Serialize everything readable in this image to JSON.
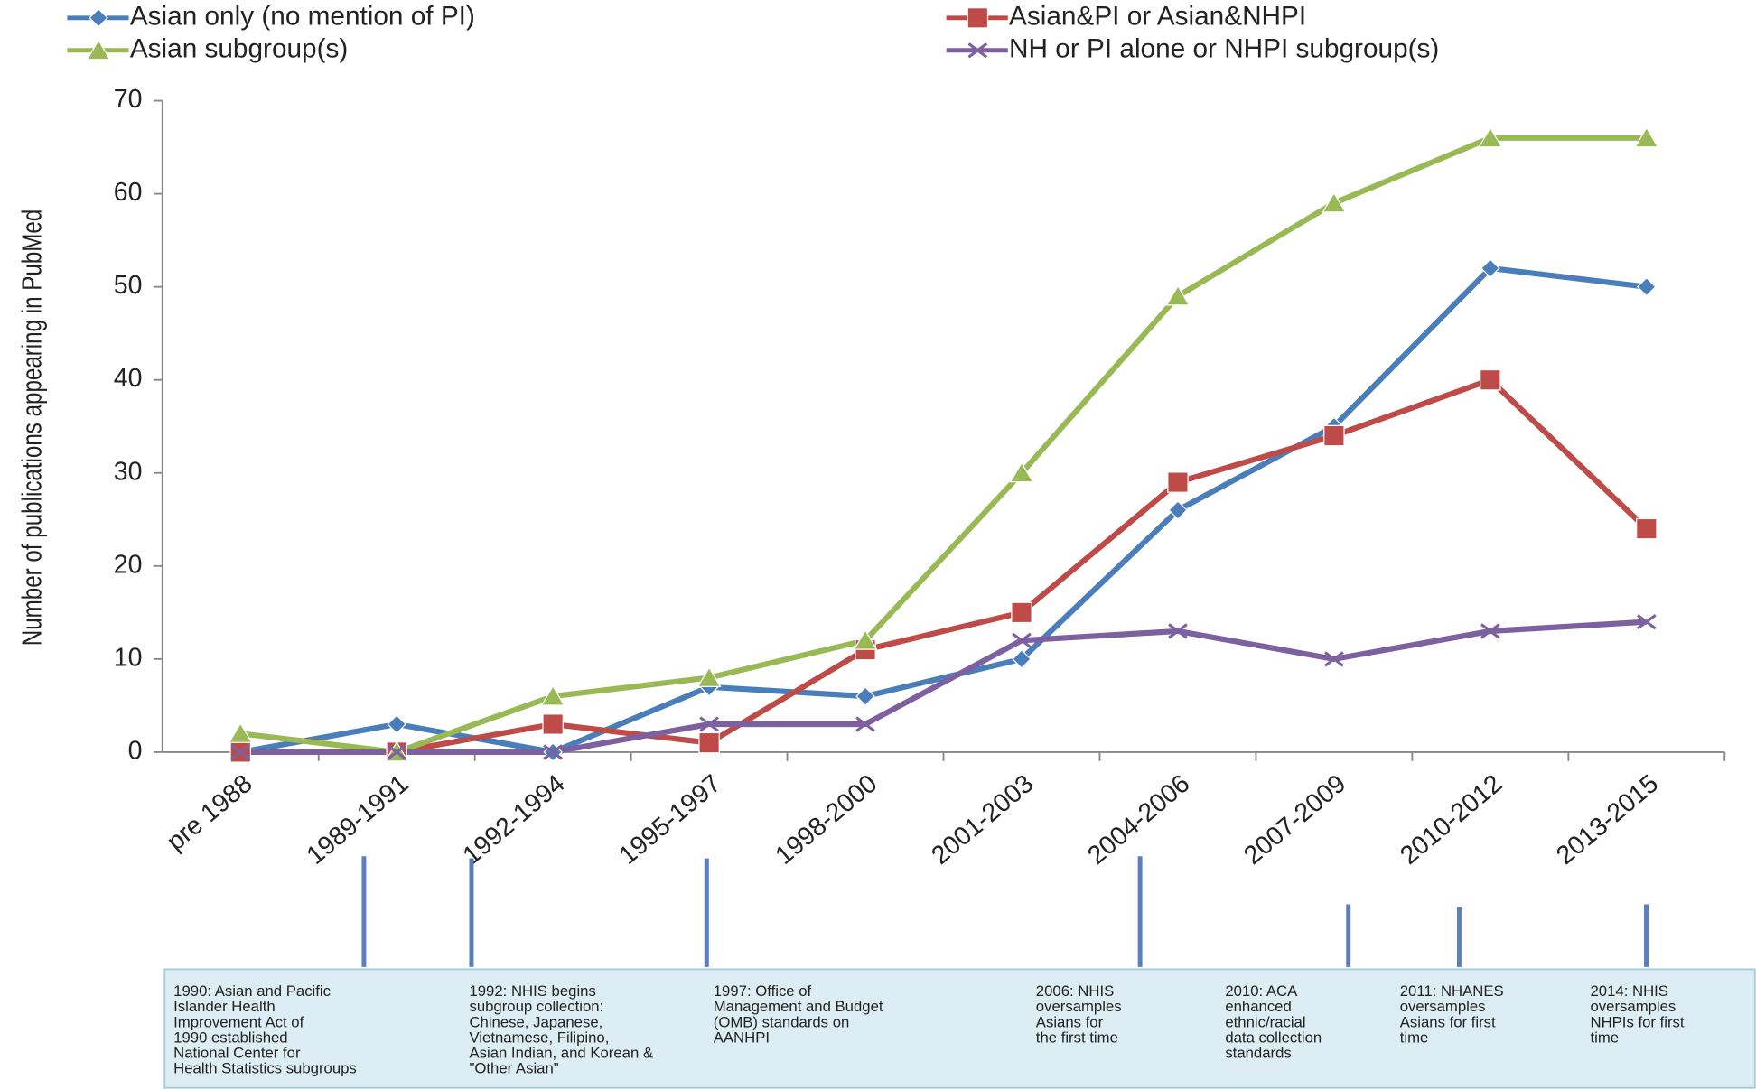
{
  "chart_data": {
    "type": "line",
    "y_label": "Number of publications appearing in PubMed",
    "categories": [
      "pre 1988",
      "1989-1991",
      "1992-1994",
      "1995-1997",
      "1998-2000",
      "2001-2003",
      "2004-2006",
      "2007-2009",
      "2010-2012",
      "2013-2015"
    ],
    "series": [
      {
        "name": "Asian only (no mention of PI)",
        "color": "#4a7ebb",
        "marker": "diamond",
        "values": [
          0,
          3,
          0,
          7,
          6,
          10,
          26,
          35,
          52,
          50
        ]
      },
      {
        "name": "Asian&PI or Asian&NHPI",
        "color": "#be4b48",
        "marker": "square",
        "values": [
          0,
          0,
          3,
          1,
          11,
          15,
          29,
          34,
          40,
          24
        ]
      },
      {
        "name": "Asian subgroup(s)",
        "color": "#98b954",
        "marker": "triangle",
        "values": [
          2,
          0,
          6,
          8,
          12,
          30,
          49,
          59,
          66,
          66
        ]
      },
      {
        "name": "NH or PI alone or NHPI subgroup(s)",
        "color": "#7d60a0",
        "marker": "x",
        "values": [
          0,
          0,
          0,
          3,
          3,
          12,
          13,
          10,
          13,
          14
        ]
      }
    ],
    "ylim": [
      0,
      70
    ],
    "yticks": [
      0,
      10,
      20,
      30,
      40,
      50,
      60,
      70
    ],
    "grid": false,
    "legend": "top",
    "annotations": [
      [
        "1990: Asian and Pacific",
        "Islander Health",
        "Improvement Act of",
        "1990 established",
        "National Center for",
        "Health Statistics subgroups"
      ],
      [
        "1992: NHIS begins",
        "subgroup collection:",
        "Chinese, Japanese,",
        "Vietnamese, Filipino,",
        "Asian Indian, and Korean &",
        "\"Other Asian\""
      ],
      [
        "1997: Office of",
        "Management and Budget",
        "(OMB) standards on",
        "AANHPI"
      ],
      [
        "2006: NHIS",
        "oversamples",
        "Asians for",
        "the first time"
      ],
      [
        "2010: ACA",
        "enhanced",
        "ethnic/racial",
        "data collection",
        "standards"
      ],
      [
        "2011: NHANES",
        "oversamples",
        "Asians for first",
        "time"
      ],
      [
        "2014: NHIS",
        "oversamples",
        "NHPIs for first",
        "time"
      ]
    ]
  }
}
